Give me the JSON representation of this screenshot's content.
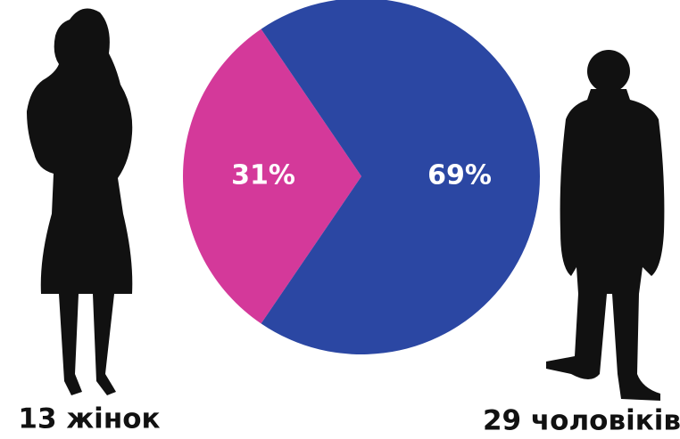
{
  "chart_data": {
    "type": "pie",
    "categories": [
      "13 жінок",
      "29 чоловіків"
    ],
    "values": [
      31,
      69
    ],
    "value_labels": [
      "31%",
      "69%"
    ],
    "colors": [
      "#d4399a",
      "#2b47a3"
    ]
  }
}
